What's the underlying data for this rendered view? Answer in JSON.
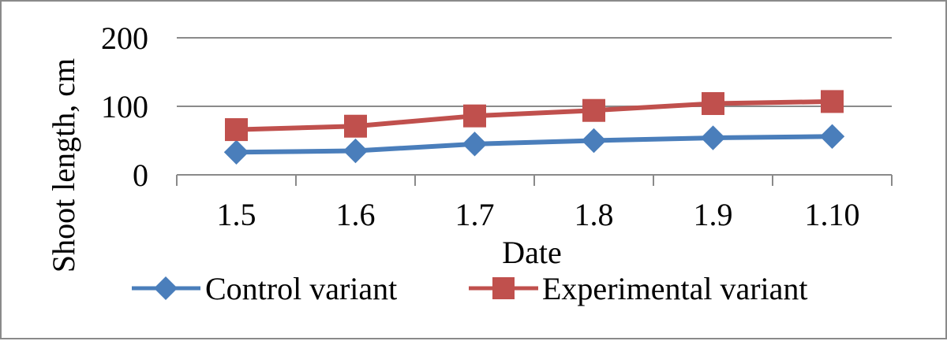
{
  "chart_data": {
    "type": "line",
    "categories": [
      "1.5",
      "1.6",
      "1.7",
      "1.8",
      "1.9",
      "1.10"
    ],
    "series": [
      {
        "name": "Control variant",
        "values": [
          33,
          35,
          45,
          50,
          54,
          56
        ],
        "color": "#4a7ebb",
        "marker": "diamond"
      },
      {
        "name": "Experimental variant",
        "values": [
          66,
          71,
          86,
          94,
          104,
          107
        ],
        "color": "#c0504d",
        "marker": "square"
      }
    ],
    "xlabel": "Date",
    "ylabel": "Shoot length, cm",
    "ylim": [
      0,
      200
    ],
    "yticks": [
      "0",
      "100",
      "200"
    ],
    "ytick_values": [
      0,
      100,
      200
    ],
    "grid": true,
    "legend_position": "bottom"
  }
}
